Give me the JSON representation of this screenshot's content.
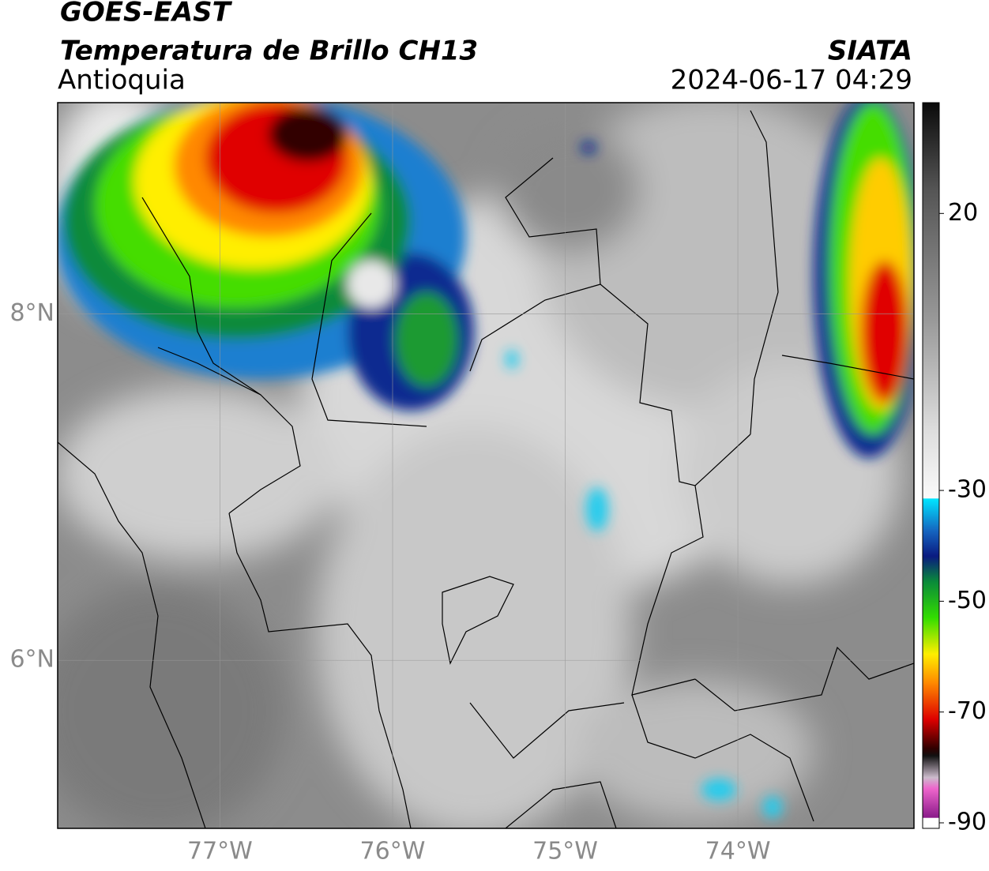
{
  "header": {
    "satellite": "GOES-EAST",
    "product": "Temperatura de Brillo CH13",
    "region": "Antioquia",
    "organization": "SIATA",
    "datetime": "2024-06-17 04:29"
  },
  "map": {
    "lonlim": [
      -77.94,
      -72.98
    ],
    "latlim": [
      5.03,
      9.22
    ],
    "lonticks": [
      {
        "value": -77,
        "label": "77°W"
      },
      {
        "value": -76,
        "label": "76°W"
      },
      {
        "value": -75,
        "label": "75°W"
      },
      {
        "value": -74,
        "label": "74°W"
      }
    ],
    "latticks": [
      {
        "value": 8,
        "label": "8°N"
      },
      {
        "value": 6,
        "label": "6°N"
      }
    ],
    "grid": true
  },
  "colorbar": {
    "lim": [
      -91,
      40
    ],
    "ticks": [
      20,
      -30,
      -50,
      -70,
      -90
    ]
  }
}
